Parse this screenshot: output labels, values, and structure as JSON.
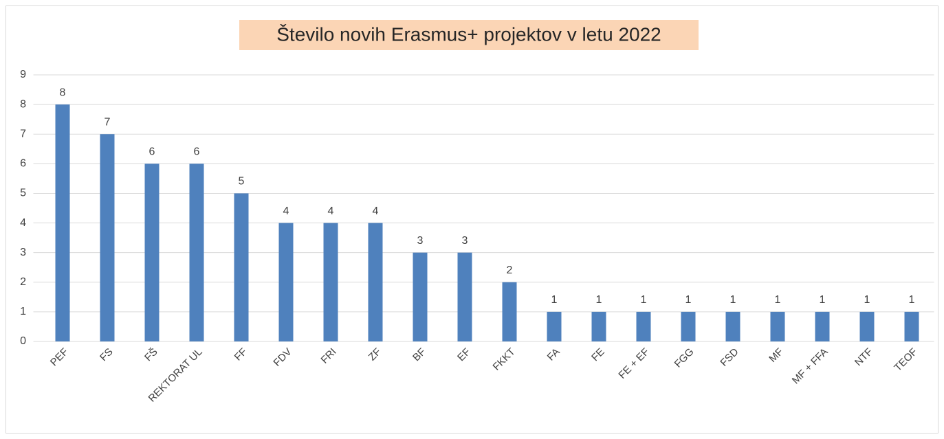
{
  "chart_data": {
    "type": "bar",
    "title": "Število novih Erasmus+ projektov v letu 2022",
    "categories": [
      "PEF",
      "FS",
      "FŠ",
      "REKTORAT UL",
      "FF",
      "FDV",
      "FRI",
      "ZF",
      "BF",
      "EF",
      "FKKT",
      "FA",
      "FE",
      "FE + EF",
      "FGG",
      "FSD",
      "MF",
      "MF + FFA",
      "NTF",
      "TEOF"
    ],
    "values": [
      8,
      7,
      6,
      6,
      5,
      4,
      4,
      4,
      3,
      3,
      2,
      1,
      1,
      1,
      1,
      1,
      1,
      1,
      1,
      1
    ],
    "color": "#4f81bd",
    "ylim": [
      0,
      9
    ],
    "yticks": [
      0,
      1,
      2,
      3,
      4,
      5,
      6,
      7,
      8,
      9
    ],
    "grid": true
  }
}
